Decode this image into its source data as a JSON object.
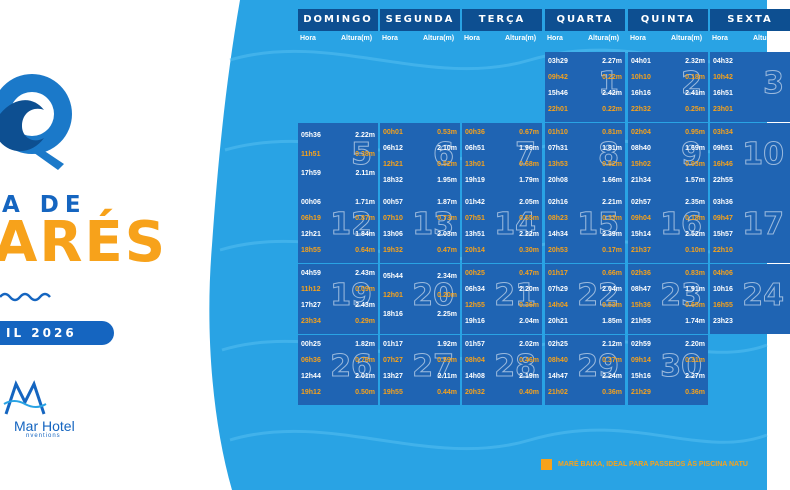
{
  "colors": {
    "sea": "#29a3e4",
    "header": "#0d4f91",
    "cell": "#1f64b3",
    "low_tide": "#f7a21b",
    "high_tide": "#ffffff",
    "brand": "#1565c0",
    "title_orange": "#f7a21b"
  },
  "title": {
    "line1": "A DE",
    "line2": "ARÉS",
    "month": "IL 2026"
  },
  "hotel": {
    "name": "Mar Hotel",
    "sub": "nventions"
  },
  "weekdays": [
    "DOMINGO",
    "SEGUNDA",
    "TERÇA",
    "QUARTA",
    "QUINTA",
    "SEXTA"
  ],
  "col_labels": {
    "time": "Hora",
    "height": "Altura(m)"
  },
  "legend": "MARÉ BAIXA, IDEAL PARA PASSEIOS ÀS PISCINA NATU",
  "days": [
    {
      "day": "1",
      "col": 3,
      "row": 0,
      "tides": [
        [
          "03h29",
          "2.27m",
          "high"
        ],
        [
          "09h42",
          "0.22m",
          "low"
        ],
        [
          "15h46",
          "2.42m",
          "high"
        ],
        [
          "22h01",
          "0.22m",
          "low"
        ]
      ]
    },
    {
      "day": "2",
      "col": 4,
      "row": 0,
      "tides": [
        [
          "04h01",
          "2.32m",
          "high"
        ],
        [
          "10h10",
          "0.18m",
          "low"
        ],
        [
          "16h16",
          "2.41m",
          "high"
        ],
        [
          "22h32",
          "0.25m",
          "low"
        ]
      ]
    },
    {
      "day": "3",
      "col": 5,
      "row": 0,
      "tides": [
        [
          "04h32",
          "",
          "high"
        ],
        [
          "10h42",
          "",
          "low"
        ],
        [
          "16h51",
          "",
          "high"
        ],
        [
          "23h01",
          "",
          "low"
        ]
      ]
    },
    {
      "day": "5",
      "col": 0,
      "row": 1,
      "tides": [
        [
          "05h36",
          "2.22m",
          "high"
        ],
        [
          "11h51",
          "0.38m",
          "low"
        ],
        [
          "17h59",
          "2.11m",
          "high"
        ]
      ]
    },
    {
      "day": "6",
      "col": 1,
      "row": 1,
      "tides": [
        [
          "00h01",
          "0.53m",
          "low"
        ],
        [
          "06h12",
          "2.10m",
          "high"
        ],
        [
          "12h21",
          "0.52m",
          "low"
        ],
        [
          "18h32",
          "1.95m",
          "high"
        ]
      ]
    },
    {
      "day": "7",
      "col": 2,
      "row": 1,
      "tides": [
        [
          "00h36",
          "0.67m",
          "low"
        ],
        [
          "06h51",
          "1.96m",
          "high"
        ],
        [
          "13h01",
          "0.68m",
          "low"
        ],
        [
          "19h19",
          "1.79m",
          "high"
        ]
      ]
    },
    {
      "day": "8",
      "col": 3,
      "row": 1,
      "tides": [
        [
          "01h10",
          "0.81m",
          "low"
        ],
        [
          "07h31",
          "1.81m",
          "high"
        ],
        [
          "13h53",
          "0.82m",
          "low"
        ],
        [
          "20h08",
          "1.66m",
          "high"
        ]
      ]
    },
    {
      "day": "9",
      "col": 4,
      "row": 1,
      "tides": [
        [
          "02h04",
          "0.95m",
          "low"
        ],
        [
          "08h40",
          "1.69m",
          "high"
        ],
        [
          "15h02",
          "0.93m",
          "low"
        ],
        [
          "21h34",
          "1.57m",
          "high"
        ]
      ]
    },
    {
      "day": "10",
      "col": 5,
      "row": 1,
      "tides": [
        [
          "03h34",
          "",
          "low"
        ],
        [
          "09h51",
          "",
          "high"
        ],
        [
          "16h46",
          "",
          "low"
        ],
        [
          "22h55",
          "",
          "high"
        ]
      ]
    },
    {
      "day": "12",
      "col": 0,
      "row": 2,
      "tides": [
        [
          "00h06",
          "1.71m",
          "high"
        ],
        [
          "06h19",
          "0.87m",
          "low"
        ],
        [
          "12h21",
          "1.84m",
          "high"
        ],
        [
          "18h55",
          "0.64m",
          "low"
        ]
      ]
    },
    {
      "day": "13",
      "col": 1,
      "row": 2,
      "tides": [
        [
          "00h57",
          "1.87m",
          "high"
        ],
        [
          "07h10",
          "0.73m",
          "low"
        ],
        [
          "13h06",
          "2.03m",
          "high"
        ],
        [
          "19h32",
          "0.47m",
          "low"
        ]
      ]
    },
    {
      "day": "14",
      "col": 2,
      "row": 2,
      "tides": [
        [
          "01h42",
          "2.05m",
          "high"
        ],
        [
          "07h51",
          "0.55m",
          "low"
        ],
        [
          "13h51",
          "2.22m",
          "high"
        ],
        [
          "20h14",
          "0.30m",
          "low"
        ]
      ]
    },
    {
      "day": "15",
      "col": 3,
      "row": 2,
      "tides": [
        [
          "02h16",
          "2.21m",
          "high"
        ],
        [
          "08h23",
          "0.33m",
          "low"
        ],
        [
          "14h34",
          "2.39m",
          "high"
        ],
        [
          "20h53",
          "0.17m",
          "low"
        ]
      ]
    },
    {
      "day": "16",
      "col": 4,
      "row": 2,
      "tides": [
        [
          "02h57",
          "2.35m",
          "high"
        ],
        [
          "09h04",
          "0.18m",
          "low"
        ],
        [
          "15h14",
          "2.52m",
          "high"
        ],
        [
          "21h37",
          "0.10m",
          "low"
        ]
      ]
    },
    {
      "day": "17",
      "col": 5,
      "row": 2,
      "tides": [
        [
          "03h36",
          "",
          "high"
        ],
        [
          "09h47",
          "",
          "low"
        ],
        [
          "15h57",
          "",
          "high"
        ],
        [
          "22h10",
          "",
          "low"
        ]
      ]
    },
    {
      "day": "19",
      "col": 0,
      "row": 3,
      "tides": [
        [
          "04h59",
          "2.43m",
          "high"
        ],
        [
          "11h12",
          "0.09m",
          "low"
        ],
        [
          "17h27",
          "2.43m",
          "high"
        ],
        [
          "23h34",
          "0.29m",
          "low"
        ]
      ]
    },
    {
      "day": "20",
      "col": 1,
      "row": 3,
      "tides": [
        [
          "05h44",
          "2.34m",
          "high"
        ],
        [
          "12h01",
          "0.20m",
          "low"
        ],
        [
          "18h16",
          "2.25m",
          "high"
        ]
      ]
    },
    {
      "day": "21",
      "col": 2,
      "row": 3,
      "tides": [
        [
          "00h25",
          "0.47m",
          "low"
        ],
        [
          "06h34",
          "2.20m",
          "high"
        ],
        [
          "12h55",
          "0.36m",
          "low"
        ],
        [
          "19h16",
          "2.04m",
          "high"
        ]
      ]
    },
    {
      "day": "22",
      "col": 3,
      "row": 3,
      "tides": [
        [
          "01h17",
          "0.66m",
          "low"
        ],
        [
          "07h29",
          "2.04m",
          "high"
        ],
        [
          "14h04",
          "0.53m",
          "low"
        ],
        [
          "20h21",
          "1.85m",
          "high"
        ]
      ]
    },
    {
      "day": "23",
      "col": 4,
      "row": 3,
      "tides": [
        [
          "02h36",
          "0.83m",
          "low"
        ],
        [
          "08h47",
          "1.91m",
          "high"
        ],
        [
          "15h36",
          "0.65m",
          "low"
        ],
        [
          "21h55",
          "1.74m",
          "high"
        ]
      ]
    },
    {
      "day": "24",
      "col": 5,
      "row": 3,
      "tides": [
        [
          "04h06",
          "",
          "low"
        ],
        [
          "10h16",
          "",
          "high"
        ],
        [
          "16h55",
          "",
          "low"
        ],
        [
          "23h23",
          "",
          "high"
        ]
      ]
    },
    {
      "day": "26",
      "col": 0,
      "row": 4,
      "tides": [
        [
          "00h25",
          "1.82m",
          "high"
        ],
        [
          "06h36",
          "0.76m",
          "low"
        ],
        [
          "12h44",
          "2.01m",
          "high"
        ],
        [
          "19h12",
          "0.50m",
          "low"
        ]
      ]
    },
    {
      "day": "27",
      "col": 1,
      "row": 4,
      "tides": [
        [
          "01h17",
          "1.92m",
          "high"
        ],
        [
          "07h27",
          "0.59m",
          "low"
        ],
        [
          "13h27",
          "2.11m",
          "high"
        ],
        [
          "19h55",
          "0.44m",
          "low"
        ]
      ]
    },
    {
      "day": "28",
      "col": 2,
      "row": 4,
      "tides": [
        [
          "01h57",
          "2.02m",
          "high"
        ],
        [
          "08h04",
          "0.46m",
          "low"
        ],
        [
          "14h08",
          "2.19m",
          "high"
        ],
        [
          "20h32",
          "0.40m",
          "low"
        ]
      ]
    },
    {
      "day": "29",
      "col": 3,
      "row": 4,
      "tides": [
        [
          "02h25",
          "2.12m",
          "high"
        ],
        [
          "08h40",
          "0.37m",
          "low"
        ],
        [
          "14h47",
          "2.24m",
          "high"
        ],
        [
          "21h02",
          "0.36m",
          "low"
        ]
      ]
    },
    {
      "day": "30",
      "col": 4,
      "row": 4,
      "tides": [
        [
          "02h59",
          "2.20m",
          "high"
        ],
        [
          "09h14",
          "0.31m",
          "low"
        ],
        [
          "15h16",
          "2.27m",
          "high"
        ],
        [
          "21h29",
          "0.36m",
          "low"
        ]
      ]
    }
  ]
}
